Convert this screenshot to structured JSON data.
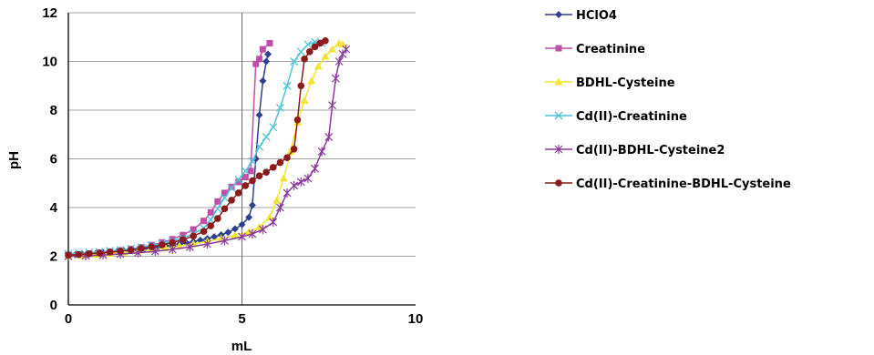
{
  "chart_data": {
    "type": "line",
    "xlabel": "mL",
    "ylabel": "pH",
    "xlim": [
      0,
      10
    ],
    "ylim": [
      0,
      12
    ],
    "xticks": [
      "0",
      "5",
      "10"
    ],
    "yticks": [
      "0",
      "2",
      "4",
      "6",
      "8",
      "10",
      "12"
    ],
    "grid": "horizontal lines at every y tick, vertical line at x = 5",
    "legend_position": "right",
    "series": [
      {
        "name": "HClO4",
        "color": "#2f3f8f",
        "marker": "diamond",
        "points": [
          [
            0,
            2.05
          ],
          [
            0.2,
            2.06
          ],
          [
            0.4,
            2.08
          ],
          [
            0.6,
            2.1
          ],
          [
            0.8,
            2.12
          ],
          [
            1,
            2.15
          ],
          [
            1.2,
            2.17
          ],
          [
            1.4,
            2.19
          ],
          [
            1.6,
            2.22
          ],
          [
            1.8,
            2.25
          ],
          [
            2,
            2.28
          ],
          [
            2.2,
            2.31
          ],
          [
            2.4,
            2.34
          ],
          [
            2.6,
            2.38
          ],
          [
            2.8,
            2.42
          ],
          [
            3,
            2.46
          ],
          [
            3.2,
            2.5
          ],
          [
            3.4,
            2.55
          ],
          [
            3.6,
            2.6
          ],
          [
            3.8,
            2.66
          ],
          [
            4,
            2.72
          ],
          [
            4.2,
            2.8
          ],
          [
            4.4,
            2.88
          ],
          [
            4.6,
            2.98
          ],
          [
            4.8,
            3.12
          ],
          [
            5,
            3.3
          ],
          [
            5.2,
            3.6
          ],
          [
            5.3,
            4.1
          ],
          [
            5.4,
            6.0
          ],
          [
            5.5,
            7.8
          ],
          [
            5.6,
            9.2
          ],
          [
            5.7,
            10.0
          ],
          [
            5.75,
            10.3
          ]
        ]
      },
      {
        "name": "Creatinine",
        "color": "#c04fa8",
        "marker": "square",
        "points": [
          [
            0,
            2.05
          ],
          [
            0.3,
            2.08
          ],
          [
            0.6,
            2.11
          ],
          [
            0.9,
            2.15
          ],
          [
            1.2,
            2.19
          ],
          [
            1.5,
            2.24
          ],
          [
            1.8,
            2.3
          ],
          [
            2.1,
            2.37
          ],
          [
            2.4,
            2.46
          ],
          [
            2.7,
            2.57
          ],
          [
            3,
            2.7
          ],
          [
            3.3,
            2.87
          ],
          [
            3.6,
            3.1
          ],
          [
            3.9,
            3.45
          ],
          [
            4.1,
            3.8
          ],
          [
            4.3,
            4.25
          ],
          [
            4.5,
            4.6
          ],
          [
            4.7,
            4.85
          ],
          [
            4.9,
            5.05
          ],
          [
            5.1,
            5.25
          ],
          [
            5.25,
            5.5
          ],
          [
            5.4,
            9.9
          ],
          [
            5.5,
            10.1
          ],
          [
            5.6,
            10.5
          ],
          [
            5.8,
            10.75
          ]
        ]
      },
      {
        "name": "BDHL-Cysteine",
        "color": "#f2e430",
        "marker": "triangle",
        "points": [
          [
            0,
            2.0
          ],
          [
            0.4,
            2.03
          ],
          [
            0.8,
            2.07
          ],
          [
            1.2,
            2.11
          ],
          [
            1.6,
            2.16
          ],
          [
            2,
            2.21
          ],
          [
            2.4,
            2.27
          ],
          [
            2.8,
            2.34
          ],
          [
            3.2,
            2.42
          ],
          [
            3.6,
            2.51
          ],
          [
            4,
            2.61
          ],
          [
            4.4,
            2.73
          ],
          [
            4.8,
            2.86
          ],
          [
            5.2,
            3.0
          ],
          [
            5.5,
            3.2
          ],
          [
            5.8,
            3.6
          ],
          [
            6,
            4.3
          ],
          [
            6.2,
            5.2
          ],
          [
            6.4,
            6.3
          ],
          [
            6.6,
            7.5
          ],
          [
            6.8,
            8.4
          ],
          [
            7,
            9.2
          ],
          [
            7.2,
            9.8
          ],
          [
            7.4,
            10.2
          ],
          [
            7.6,
            10.5
          ],
          [
            7.8,
            10.75
          ],
          [
            7.9,
            10.7
          ]
        ]
      },
      {
        "name": "Cd(II)-Creatinine",
        "color": "#4fc4d8",
        "marker": "x",
        "points": [
          [
            0,
            2.1
          ],
          [
            0.3,
            2.12
          ],
          [
            0.6,
            2.15
          ],
          [
            0.9,
            2.18
          ],
          [
            1.2,
            2.22
          ],
          [
            1.5,
            2.26
          ],
          [
            1.8,
            2.31
          ],
          [
            2.1,
            2.37
          ],
          [
            2.4,
            2.44
          ],
          [
            2.7,
            2.52
          ],
          [
            3,
            2.62
          ],
          [
            3.3,
            2.75
          ],
          [
            3.6,
            2.92
          ],
          [
            3.9,
            3.15
          ],
          [
            4.1,
            3.5
          ],
          [
            4.3,
            3.95
          ],
          [
            4.5,
            4.4
          ],
          [
            4.7,
            4.8
          ],
          [
            4.9,
            5.15
          ],
          [
            5.1,
            5.5
          ],
          [
            5.3,
            5.9
          ],
          [
            5.5,
            6.5
          ],
          [
            5.7,
            6.9
          ],
          [
            5.9,
            7.3
          ],
          [
            6.1,
            8.1
          ],
          [
            6.3,
            9.0
          ],
          [
            6.5,
            10.0
          ],
          [
            6.7,
            10.4
          ],
          [
            6.9,
            10.7
          ],
          [
            7.1,
            10.8
          ],
          [
            7.3,
            10.75
          ]
        ]
      },
      {
        "name": "Cd(II)-BDHL-Cysteine2",
        "color": "#8a3a9c",
        "marker": "star",
        "points": [
          [
            0,
            2.0
          ],
          [
            0.5,
            2.02
          ],
          [
            1,
            2.05
          ],
          [
            1.5,
            2.09
          ],
          [
            2,
            2.14
          ],
          [
            2.5,
            2.2
          ],
          [
            3,
            2.28
          ],
          [
            3.5,
            2.38
          ],
          [
            4,
            2.5
          ],
          [
            4.5,
            2.64
          ],
          [
            5,
            2.8
          ],
          [
            5.3,
            2.92
          ],
          [
            5.6,
            3.1
          ],
          [
            5.9,
            3.4
          ],
          [
            6.1,
            4.0
          ],
          [
            6.3,
            4.6
          ],
          [
            6.5,
            4.9
          ],
          [
            6.7,
            5.05
          ],
          [
            6.9,
            5.2
          ],
          [
            7.1,
            5.6
          ],
          [
            7.3,
            6.3
          ],
          [
            7.5,
            6.9
          ],
          [
            7.6,
            8.2
          ],
          [
            7.7,
            9.3
          ],
          [
            7.8,
            10.0
          ],
          [
            7.9,
            10.3
          ],
          [
            8,
            10.5
          ]
        ]
      },
      {
        "name": "Cd(II)-Creatinine-BDHL-Cysteine",
        "color": "#8b1a1a",
        "marker": "circle",
        "points": [
          [
            0,
            2.05
          ],
          [
            0.3,
            2.07
          ],
          [
            0.6,
            2.1
          ],
          [
            0.9,
            2.13
          ],
          [
            1.2,
            2.17
          ],
          [
            1.5,
            2.21
          ],
          [
            1.8,
            2.26
          ],
          [
            2.1,
            2.32
          ],
          [
            2.4,
            2.39
          ],
          [
            2.7,
            2.47
          ],
          [
            3,
            2.56
          ],
          [
            3.3,
            2.68
          ],
          [
            3.6,
            2.83
          ],
          [
            3.9,
            3.02
          ],
          [
            4.1,
            3.25
          ],
          [
            4.3,
            3.55
          ],
          [
            4.5,
            3.95
          ],
          [
            4.7,
            4.3
          ],
          [
            4.9,
            4.6
          ],
          [
            5.1,
            4.9
          ],
          [
            5.3,
            5.1
          ],
          [
            5.5,
            5.3
          ],
          [
            5.7,
            5.45
          ],
          [
            5.9,
            5.65
          ],
          [
            6.1,
            5.85
          ],
          [
            6.3,
            6.05
          ],
          [
            6.5,
            6.4
          ],
          [
            6.6,
            7.6
          ],
          [
            6.7,
            9.0
          ],
          [
            6.8,
            10.1
          ],
          [
            6.95,
            10.4
          ],
          [
            7.1,
            10.6
          ],
          [
            7.25,
            10.75
          ],
          [
            7.4,
            10.85
          ]
        ]
      }
    ]
  }
}
